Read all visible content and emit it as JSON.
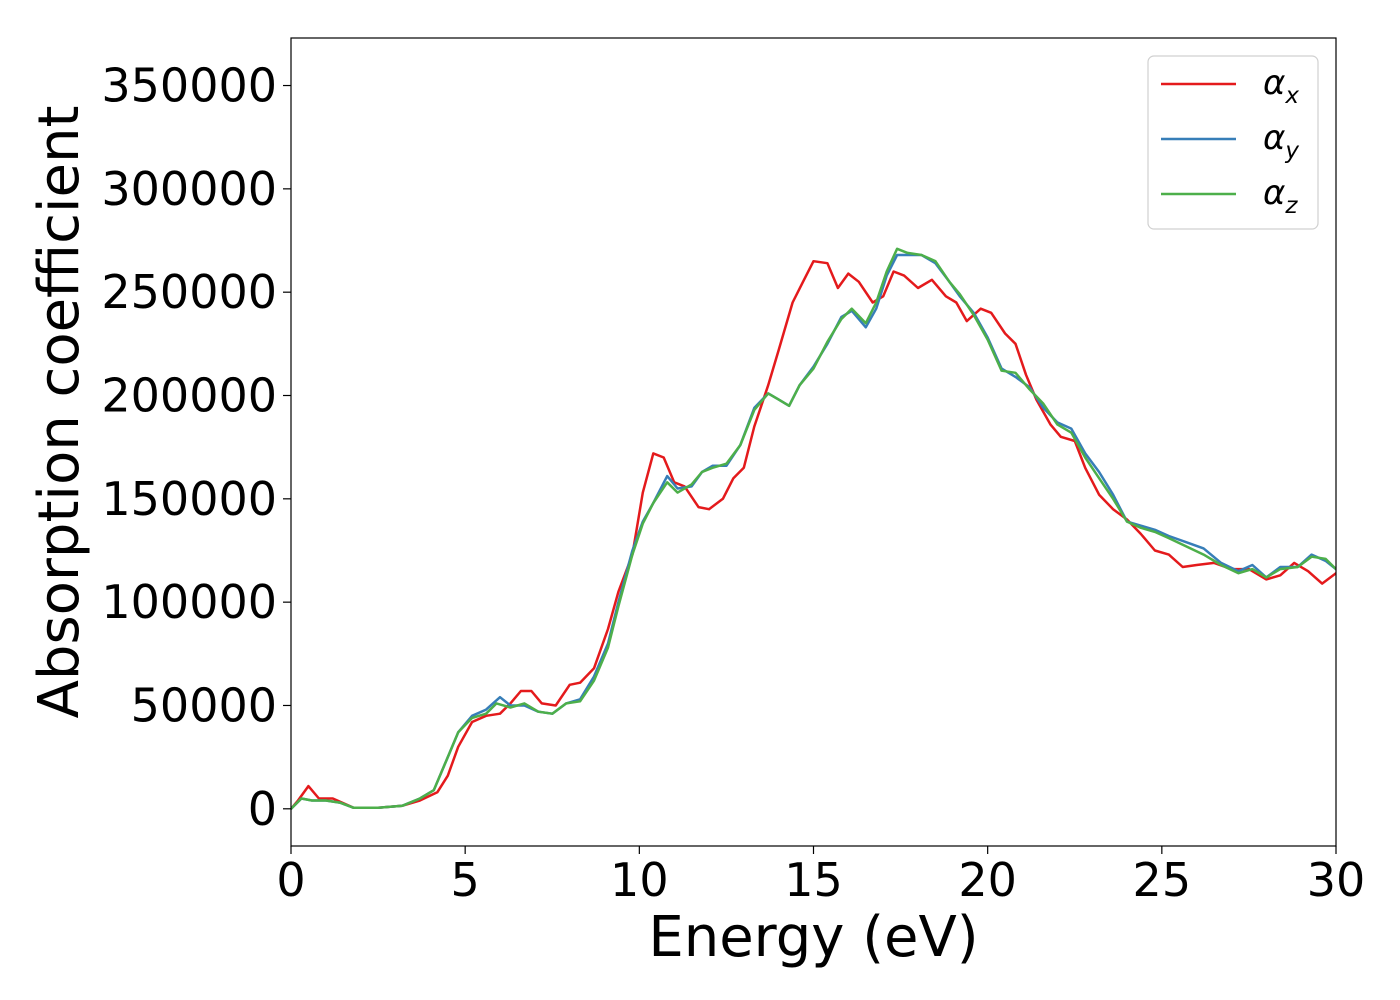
{
  "chart_data": {
    "type": "line",
    "title": "",
    "xlabel": "Energy (eV)",
    "ylabel": "Absorption coefficient",
    "xlim": [
      0,
      30
    ],
    "ylim": [
      -18000,
      373000
    ],
    "xticks": [
      0,
      5,
      10,
      15,
      20,
      25,
      30
    ],
    "xtick_labels": [
      "0",
      "5",
      "10",
      "15",
      "20",
      "25",
      "30"
    ],
    "yticks": [
      0,
      50000,
      100000,
      150000,
      200000,
      250000,
      300000,
      350000
    ],
    "ytick_labels": [
      "0",
      "50000",
      "100000",
      "150000",
      "200000",
      "250000",
      "300000",
      "350000"
    ],
    "grid": false,
    "legend_position": "top-right",
    "series": [
      {
        "name": "αx",
        "base": "α",
        "sub": "x",
        "color": "#e41a1c",
        "x": [
          0,
          0.2,
          0.5,
          0.8,
          1.2,
          1.8,
          2.5,
          3.2,
          3.7,
          4.2,
          4.5,
          4.8,
          5.2,
          5.6,
          6.0,
          6.3,
          6.6,
          6.9,
          7.2,
          7.6,
          8.0,
          8.3,
          8.7,
          9.1,
          9.4,
          9.8,
          10.1,
          10.4,
          10.7,
          11.0,
          11.3,
          11.7,
          12.0,
          12.4,
          12.7,
          13.0,
          13.3,
          13.7,
          14.0,
          14.4,
          14.7,
          15.0,
          15.4,
          15.7,
          16.0,
          16.3,
          16.7,
          17.0,
          17.3,
          17.6,
          18.0,
          18.4,
          18.8,
          19.1,
          19.4,
          19.8,
          20.1,
          20.5,
          20.8,
          21.1,
          21.4,
          21.8,
          22.1,
          22.5,
          22.8,
          23.2,
          23.6,
          24.0,
          24.4,
          24.8,
          25.2,
          25.6,
          26.0,
          26.5,
          27.0,
          27.5,
          28.0,
          28.4,
          28.8,
          29.2,
          29.6,
          30.0
        ],
        "values": [
          0,
          4000,
          11000,
          5000,
          5000,
          500,
          500,
          1500,
          4000,
          8000,
          16000,
          30000,
          42000,
          45000,
          46000,
          51000,
          57000,
          57000,
          51000,
          50000,
          60000,
          61000,
          68000,
          87000,
          105000,
          123000,
          153000,
          172000,
          170000,
          158000,
          156000,
          146000,
          145000,
          150000,
          160000,
          165000,
          185000,
          205000,
          222000,
          245000,
          255000,
          265000,
          264000,
          252000,
          259000,
          255000,
          245000,
          248000,
          260000,
          258000,
          252000,
          256000,
          248000,
          245000,
          236000,
          242000,
          240000,
          230000,
          225000,
          210000,
          198000,
          186000,
          180000,
          178000,
          165000,
          152000,
          145000,
          140000,
          133000,
          125000,
          123000,
          117000,
          118000,
          119000,
          116000,
          116000,
          111000,
          113000,
          119000,
          115000,
          109000,
          114000
        ]
      },
      {
        "name": "αy",
        "base": "α",
        "sub": "y",
        "color": "#377eb8",
        "x": [
          0,
          0.3,
          0.6,
          1.0,
          1.4,
          1.8,
          2.5,
          3.2,
          3.7,
          4.1,
          4.5,
          4.8,
          5.2,
          5.6,
          6.0,
          6.3,
          6.7,
          7.1,
          7.5,
          7.9,
          8.3,
          8.7,
          9.1,
          9.4,
          9.8,
          10.1,
          10.4,
          10.8,
          11.1,
          11.5,
          11.8,
          12.1,
          12.5,
          12.9,
          13.3,
          13.7,
          14.0,
          14.3,
          14.6,
          15.0,
          15.4,
          15.8,
          16.1,
          16.5,
          16.8,
          17.1,
          17.4,
          17.7,
          18.1,
          18.5,
          18.9,
          19.2,
          19.6,
          20.0,
          20.4,
          20.8,
          21.2,
          21.6,
          22.0,
          22.4,
          22.8,
          23.2,
          23.6,
          24.0,
          24.4,
          24.8,
          25.2,
          25.7,
          26.2,
          26.7,
          27.2,
          27.6,
          28.0,
          28.4,
          28.9,
          29.3,
          29.7,
          30.0
        ],
        "values": [
          0,
          5000,
          4000,
          4000,
          3000,
          500,
          500,
          1500,
          5000,
          9000,
          25000,
          37000,
          45000,
          48000,
          54000,
          50000,
          50000,
          47000,
          46000,
          51000,
          53000,
          64000,
          80000,
          100000,
          125000,
          139000,
          148000,
          161000,
          155000,
          156000,
          163000,
          166000,
          166000,
          176000,
          194000,
          201000,
          198000,
          195000,
          205000,
          214000,
          225000,
          238000,
          241000,
          233000,
          242000,
          258000,
          268000,
          268000,
          268000,
          264000,
          255000,
          248000,
          240000,
          228000,
          213000,
          209000,
          204000,
          194000,
          187000,
          184000,
          172000,
          163000,
          152000,
          139000,
          137000,
          135000,
          132000,
          129000,
          126000,
          119000,
          115000,
          118000,
          112000,
          117000,
          117000,
          123000,
          120000,
          116000
        ]
      },
      {
        "name": "αz",
        "base": "α",
        "sub": "z",
        "color": "#4daf4a",
        "x": [
          0,
          0.3,
          0.6,
          1.0,
          1.4,
          1.8,
          2.5,
          3.2,
          3.7,
          4.1,
          4.5,
          4.8,
          5.2,
          5.6,
          5.9,
          6.3,
          6.7,
          7.1,
          7.5,
          7.9,
          8.3,
          8.7,
          9.1,
          9.4,
          9.8,
          10.1,
          10.4,
          10.8,
          11.1,
          11.5,
          11.8,
          12.1,
          12.5,
          12.9,
          13.3,
          13.7,
          14.0,
          14.3,
          14.6,
          15.0,
          15.4,
          15.8,
          16.1,
          16.5,
          16.8,
          17.1,
          17.4,
          17.7,
          18.1,
          18.5,
          18.9,
          19.2,
          19.6,
          20.0,
          20.4,
          20.8,
          21.2,
          21.6,
          22.0,
          22.4,
          22.8,
          23.2,
          23.6,
          24.0,
          24.4,
          24.8,
          25.2,
          25.7,
          26.2,
          26.7,
          27.2,
          27.6,
          28.0,
          28.4,
          28.9,
          29.3,
          29.7,
          30.0
        ],
        "values": [
          0,
          5000,
          4000,
          4000,
          3000,
          500,
          500,
          1500,
          5000,
          9000,
          25000,
          37000,
          44000,
          46000,
          51000,
          49000,
          51000,
          47000,
          46000,
          51000,
          52000,
          62000,
          78000,
          98000,
          123000,
          138000,
          148000,
          158000,
          153000,
          157000,
          163000,
          165000,
          167000,
          176000,
          193000,
          201000,
          198000,
          195000,
          205000,
          213000,
          226000,
          237000,
          242000,
          235000,
          245000,
          260000,
          271000,
          269000,
          268000,
          265000,
          255000,
          249000,
          239000,
          227000,
          212000,
          211000,
          203000,
          196000,
          186000,
          182000,
          170000,
          160000,
          150000,
          139000,
          136000,
          134000,
          131000,
          127000,
          123000,
          118000,
          114000,
          116000,
          112000,
          116000,
          117000,
          122000,
          121000,
          116000
        ]
      }
    ]
  }
}
